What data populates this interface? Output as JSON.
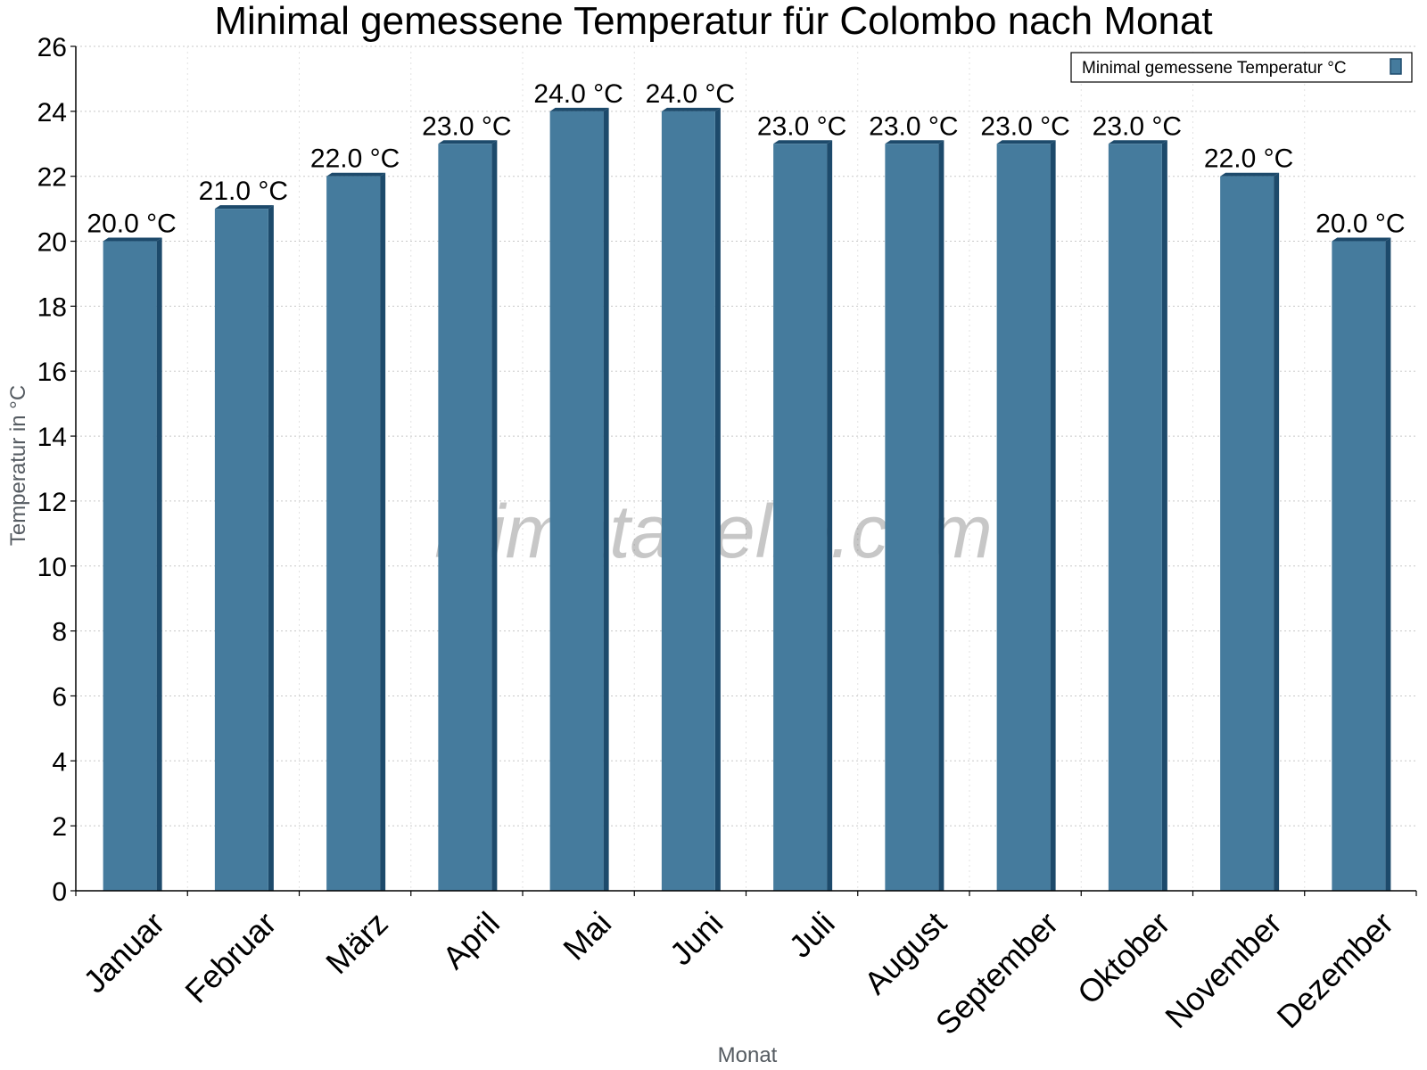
{
  "chart_data": {
    "type": "bar",
    "title": "Minimal gemessene Temperatur für Colombo nach Monat",
    "xlabel": "Monat",
    "ylabel": "Temperatur in °C",
    "categories": [
      "Januar",
      "Februar",
      "März",
      "April",
      "Mai",
      "Juni",
      "Juli",
      "August",
      "September",
      "Oktober",
      "November",
      "Dezember"
    ],
    "series": [
      {
        "name": "Minimal gemessene Temperatur °C",
        "values": [
          20.0,
          21.0,
          22.0,
          23.0,
          24.0,
          24.0,
          23.0,
          23.0,
          23.0,
          23.0,
          22.0,
          20.0
        ],
        "color": "#457b9d",
        "shade_color": "#1d4a6b"
      }
    ],
    "data_labels": [
      "20.0 °C",
      "21.0 °C",
      "22.0 °C",
      "23.0 °C",
      "24.0 °C",
      "24.0 °C",
      "23.0 °C",
      "23.0 °C",
      "23.0 °C",
      "23.0 °C",
      "22.0 °C",
      "20.0 °C"
    ],
    "ylim": [
      0,
      26
    ],
    "yticks": [
      0,
      2,
      4,
      6,
      8,
      10,
      12,
      14,
      16,
      18,
      20,
      22,
      24,
      26
    ],
    "grid": true,
    "legend_position": "top-right",
    "watermark": "klimatabelle.com"
  }
}
